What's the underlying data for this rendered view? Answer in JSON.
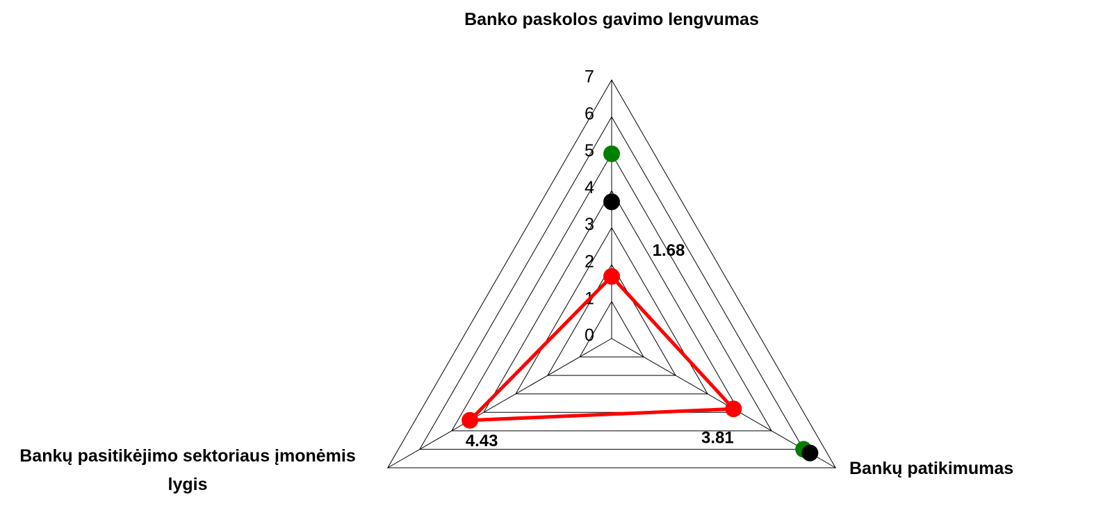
{
  "chart_data": {
    "type": "radar",
    "categories": [
      "Banko paskolos gavimo lengvumas",
      "Bankų patikimumas",
      "Bankų pasitikėjimo sektoriaus įmonėmis lygis"
    ],
    "rlim": [
      0,
      7
    ],
    "rticks": [
      0,
      1,
      2,
      3,
      4,
      5,
      6,
      7
    ],
    "grid": true,
    "series": [
      {
        "color": "#ff0000",
        "line": true,
        "data_labels": true,
        "values": [
          1.68,
          3.81,
          4.43
        ]
      },
      {
        "color": "#008000",
        "line": false,
        "data_labels": false,
        "values": [
          5,
          6,
          null
        ]
      },
      {
        "color": "#000000",
        "line": false,
        "data_labels": false,
        "values": [
          3.7,
          6.2,
          null
        ]
      }
    ]
  }
}
